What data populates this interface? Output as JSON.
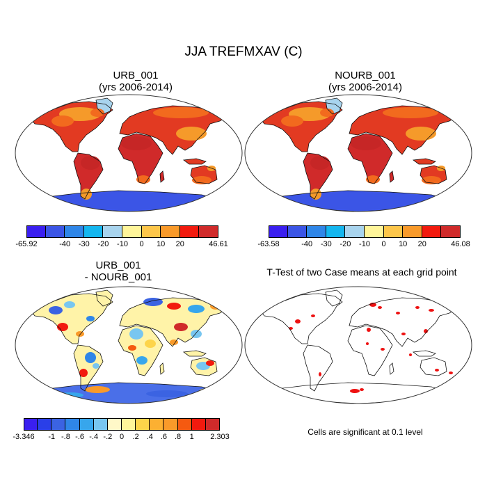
{
  "figure": {
    "main_title": "JJA TREFMXAV (C)",
    "panels": [
      {
        "id": "p1",
        "title_line1": "URB_001",
        "title_line2": "(yrs 2006-2014)"
      },
      {
        "id": "p2",
        "title_line1": "NOURB_001",
        "title_line2": "(yrs 2006-2014)"
      },
      {
        "id": "p3",
        "title_line1": "URB_001",
        "title_line2": "- NOURB_001"
      },
      {
        "id": "p4",
        "title_line1": "T-Test of two Case means at each grid point",
        "title_line2": ""
      }
    ],
    "note": "Cells are significant at 0.1 level"
  },
  "colorbars": {
    "cb1": {
      "colors": [
        "#3a1ff0",
        "#3b55e6",
        "#2f86e8",
        "#14b6ef",
        "#a8d4ee",
        "#fff59a",
        "#fdc64a",
        "#f99a2a",
        "#f21a0e",
        "#d02a2a"
      ],
      "labels": [
        {
          "text": "-65.92",
          "boundary": 0
        },
        {
          "text": "-40",
          "boundary": 2
        },
        {
          "text": "-30",
          "boundary": 3
        },
        {
          "text": "-20",
          "boundary": 4
        },
        {
          "text": "-10",
          "boundary": 5
        },
        {
          "text": "0",
          "boundary": 6
        },
        {
          "text": "10",
          "boundary": 7
        },
        {
          "text": "20",
          "boundary": 8
        },
        {
          "text": "46.61",
          "boundary": 10
        }
      ]
    },
    "cb2": {
      "colors": [
        "#3a1ff0",
        "#3b55e6",
        "#2f86e8",
        "#14b6ef",
        "#a8d4ee",
        "#fff59a",
        "#fdc64a",
        "#f99a2a",
        "#f21a0e",
        "#d02a2a"
      ],
      "labels": [
        {
          "text": "-63.58",
          "boundary": 0
        },
        {
          "text": "-40",
          "boundary": 2
        },
        {
          "text": "-30",
          "boundary": 3
        },
        {
          "text": "-20",
          "boundary": 4
        },
        {
          "text": "-10",
          "boundary": 5
        },
        {
          "text": "0",
          "boundary": 6
        },
        {
          "text": "10",
          "boundary": 7
        },
        {
          "text": "20",
          "boundary": 8
        },
        {
          "text": "46.08",
          "boundary": 10
        }
      ]
    },
    "cb3": {
      "colors": [
        "#3a1ff0",
        "#2a3fe8",
        "#3b63e2",
        "#2f86e8",
        "#37a6ec",
        "#78c6f0",
        "#fff8c8",
        "#fff59a",
        "#fdd44a",
        "#fcb032",
        "#f99a2a",
        "#f55a10",
        "#f21a0e",
        "#d02a2a"
      ],
      "labels": [
        {
          "text": "-3.346",
          "boundary": 0
        },
        {
          "text": "-1",
          "boundary": 2
        },
        {
          "text": "-.8",
          "boundary": 3
        },
        {
          "text": "-.6",
          "boundary": 4
        },
        {
          "text": "-.4",
          "boundary": 5
        },
        {
          "text": "-.2",
          "boundary": 6
        },
        {
          "text": "0",
          "boundary": 7
        },
        {
          "text": ".2",
          "boundary": 8
        },
        {
          "text": ".4",
          "boundary": 9
        },
        {
          "text": ".6",
          "boundary": 10
        },
        {
          "text": ".8",
          "boundary": 11
        },
        {
          "text": "1",
          "boundary": 12
        },
        {
          "text": "2.303",
          "boundary": 14
        }
      ]
    }
  },
  "map_style": {
    "land_warm": "#e23a22",
    "land_hot": "#d02a2a",
    "land_mid": "#f26a1e",
    "land_cool": "#f59a2a",
    "antarctica": "#3b55e6",
    "greenland": "#a8d4ee",
    "diff_base": "#fff3a8",
    "signif": "#ee1111"
  }
}
